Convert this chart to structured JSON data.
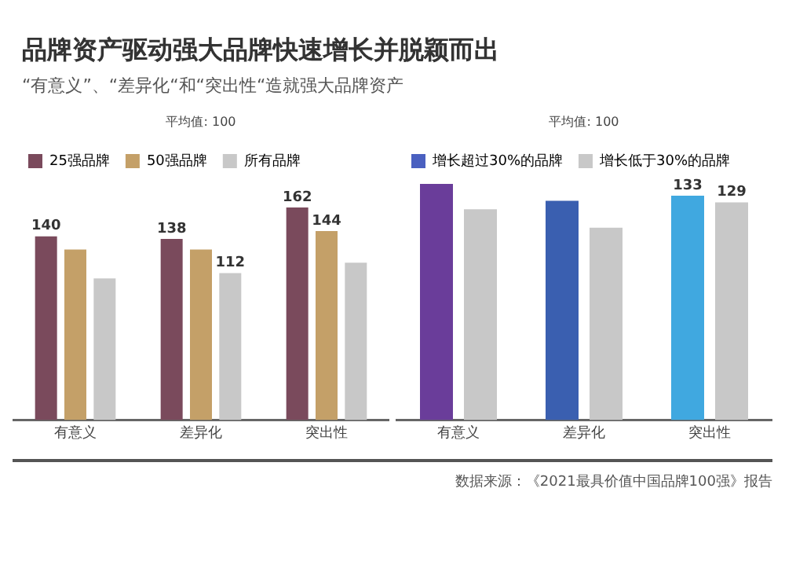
{
  "chart_data": [
    {
      "type": "bar",
      "title": "品牌资产驱动强大品牌快速增长并脱颖而出",
      "subtitle": "“有意义”、“差异化“和“突出性“造就强大品牌资产",
      "categories": [
        "有意义",
        "差异化",
        "突出性"
      ],
      "legend": "top left",
      "grid": false,
      "annotations": [
        "平均值: 100"
      ],
      "series": [
        {
          "name": "25强品牌",
          "color": "#7a4a5c",
          "values": [
            140,
            138,
            162
          ],
          "value_labels": [
            "140",
            "138",
            "162"
          ]
        },
        {
          "name": "50强品牌",
          "color": "#c4a068",
          "values": [
            130,
            130,
            144
          ],
          "value_labels": [
            null,
            null,
            "144"
          ]
        },
        {
          "name": "所有品牌",
          "color": "#c8c8c8",
          "values": [
            108,
            112,
            120
          ],
          "value_labels": [
            null,
            "112",
            null
          ]
        }
      ]
    },
    {
      "type": "bar",
      "categories": [
        "有意义",
        "差异化",
        "突出性"
      ],
      "legend": "top left",
      "grid": false,
      "annotations": [
        "平均值: 100",
        "数据来源：《2021最具价值中国品牌100强》报告"
      ],
      "series": [
        {
          "name": "增长超过30%的品牌",
          "color": "#4a60c0",
          "colors": [
            "#6a3d9a",
            "#3a5fb0",
            "#40a8e0"
          ],
          "values": [
            140,
            130,
            133
          ],
          "value_labels": [
            null,
            null,
            "133"
          ]
        },
        {
          "name": "增长低于30%的品牌",
          "color": "#c8c8c8",
          "values": [
            125,
            114,
            129
          ],
          "value_labels": [
            null,
            null,
            "129"
          ]
        }
      ]
    }
  ]
}
